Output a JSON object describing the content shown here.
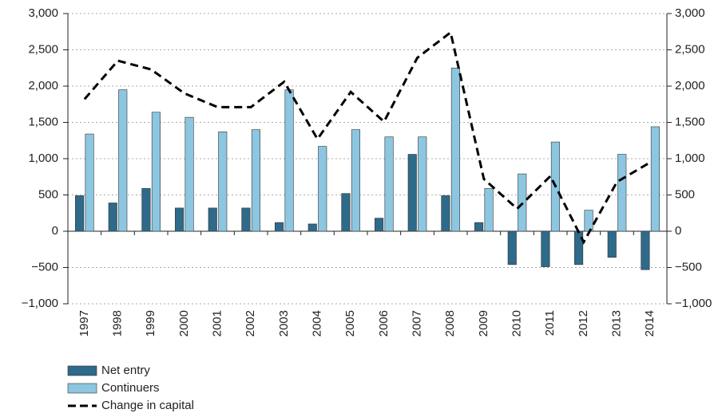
{
  "chart_data": {
    "type": "bar",
    "categories": [
      "1997",
      "1998",
      "1999",
      "2000",
      "2001",
      "2002",
      "2003",
      "2004",
      "2005",
      "2006",
      "2007",
      "2008",
      "2009",
      "2010",
      "2011",
      "2012",
      "2013",
      "2014"
    ],
    "series": [
      {
        "name": "Net entry",
        "type": "bar",
        "color": "#2e6a8a",
        "values": [
          490,
          390,
          590,
          320,
          320,
          320,
          120,
          100,
          520,
          180,
          1060,
          490,
          120,
          -460,
          -490,
          -460,
          -360,
          -530
        ]
      },
      {
        "name": "Continuers",
        "type": "bar",
        "color": "#8cc6e0",
        "values": [
          1340,
          1950,
          1640,
          1570,
          1370,
          1400,
          1950,
          1170,
          1400,
          1300,
          1300,
          2250,
          590,
          790,
          1230,
          290,
          1060,
          1440
        ]
      },
      {
        "name": "Change in capital",
        "type": "line",
        "axis": "y2",
        "color": "#000000",
        "values": [
          1820,
          2350,
          2230,
          1900,
          1710,
          1710,
          2060,
          1270,
          1920,
          1510,
          2390,
          2740,
          720,
          310,
          760,
          -150,
          680,
          950
        ]
      }
    ],
    "ylim": [
      -1000,
      3000
    ],
    "yticks": [
      {
        "value": -1000,
        "label": "−1,000"
      },
      {
        "value": -500,
        "label": "−500"
      },
      0,
      500,
      {
        "value": 1000,
        "label": "1,000"
      },
      {
        "value": 1500,
        "label": "1,500"
      },
      {
        "value": 2000,
        "label": "2,000"
      },
      {
        "value": 2500,
        "label": "2,500"
      },
      {
        "value": 3000,
        "label": "3,000"
      }
    ],
    "y2lim": [
      -1000,
      3000
    ],
    "y2ticks": [
      {
        "value": -1000,
        "label": "−1,000"
      },
      {
        "value": -500,
        "label": "−500"
      },
      0,
      500,
      {
        "value": 1000,
        "label": "1,000"
      },
      {
        "value": 1500,
        "label": "1,500"
      },
      {
        "value": 2000,
        "label": "2,000"
      },
      {
        "value": 2500,
        "label": "2,500"
      },
      {
        "value": 3000,
        "label": "3,000"
      }
    ],
    "grid": true,
    "legend": "bottom-left"
  }
}
